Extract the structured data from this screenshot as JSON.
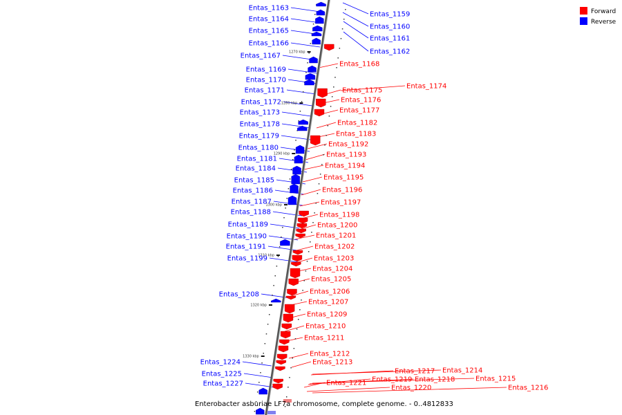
{
  "caption": "Enterobacter asburiae LF7a chromosome, complete genome. - 0..4812833",
  "legend": [
    {
      "label": "Forward",
      "color": "#ff0000"
    },
    {
      "label": "Reverse",
      "color": "#0000ff"
    }
  ],
  "colors": {
    "forward": "#ff0000",
    "reverse": "#0000ff",
    "backbone": "#888888"
  },
  "ticks": [
    "1270 kbp",
    "1280 kbp",
    "1290 kbp",
    "1300 kbp",
    "1310 kbp",
    "1320 kbp",
    "1330 kbp"
  ],
  "reverse_genes": [
    "Entas_1163",
    "Entas_1164",
    "Entas_1165",
    "Entas_1166",
    "Entas_1167",
    "Entas_1169",
    "Entas_1170",
    "Entas_1171",
    "Entas_1172",
    "Entas_1173",
    "Entas_1178",
    "Entas_1179",
    "Entas_1180",
    "Entas_1181",
    "Entas_1184",
    "Entas_1185",
    "Entas_1186",
    "Entas_1187",
    "Entas_1188",
    "Entas_1189",
    "Entas_1190",
    "Entas_1191",
    "Entas_1199",
    "Entas_1208",
    "Entas_1224",
    "Entas_1225",
    "Entas_1227"
  ],
  "reverse_right_genes": [
    "Entas_1159",
    "Entas_1160",
    "Entas_1161",
    "Entas_1162"
  ],
  "forward_genes": [
    "Entas_1168",
    "Entas_1174",
    "Entas_1175",
    "Entas_1176",
    "Entas_1177",
    "Entas_1182",
    "Entas_1183",
    "Entas_1192",
    "Entas_1193",
    "Entas_1194",
    "Entas_1195",
    "Entas_1196",
    "Entas_1197",
    "Entas_1198",
    "Entas_1200",
    "Entas_1201",
    "Entas_1202",
    "Entas_1203",
    "Entas_1204",
    "Entas_1205",
    "Entas_1206",
    "Entas_1207",
    "Entas_1209",
    "Entas_1210",
    "Entas_1211",
    "Entas_1212",
    "Entas_1213",
    "Entas_1214",
    "Entas_1215",
    "Entas_1216",
    "Entas_1217",
    "Entas_1218",
    "Entas_1219",
    "Entas_1220",
    "Entas_1221"
  ]
}
